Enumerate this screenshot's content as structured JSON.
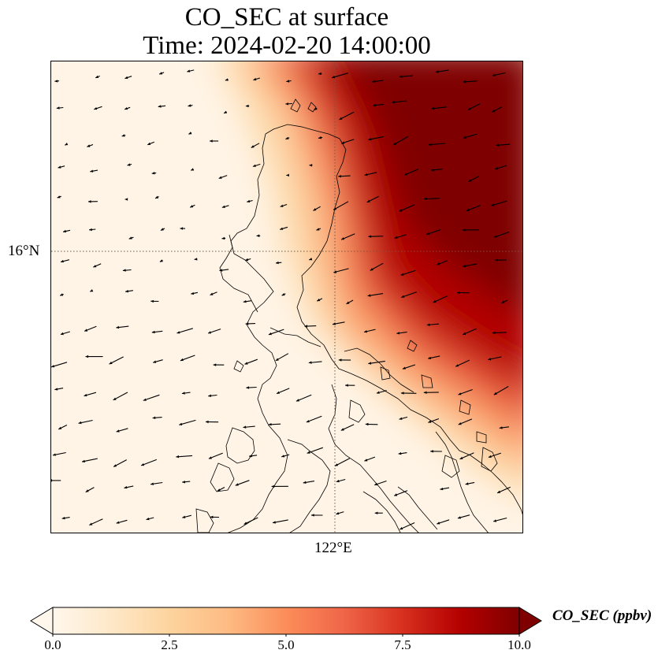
{
  "title": {
    "line1": "CO_SEC at surface",
    "line2": "Time: 2024-02-20 14:00:00"
  },
  "map": {
    "lat_label": "16°N",
    "lon_label": "122°E",
    "gridline_style": "dotted"
  },
  "colorbar": {
    "label": "CO_SEC (ppbv)",
    "ticks": [
      "0.0",
      "2.5",
      "5.0",
      "7.5",
      "10.0"
    ],
    "min": 0,
    "max": 10,
    "colormap": "OrRd",
    "extend": "both"
  },
  "colors": {
    "low": "#fff7ec",
    "mid": "#fc8d59",
    "high": "#7f0000"
  }
}
